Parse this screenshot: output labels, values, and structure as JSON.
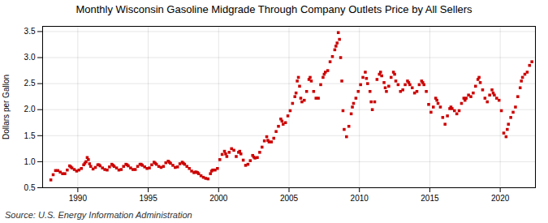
{
  "chart_data": {
    "type": "scatter",
    "title": "Monthly Wisconsin Gasoline Midgrade Through Company Outlets Price by All Sellers",
    "ylabel": "Dollars per Gallon",
    "annotations": [
      "Source: U.S. Energy Information Administration"
    ],
    "color": "#cc0000",
    "marker": "square",
    "grid": true,
    "xlim": [
      1987.5,
      2022.5
    ],
    "ylim": [
      0.5,
      3.6
    ],
    "xticks": [
      1990,
      1995,
      2000,
      2005,
      2010,
      2015,
      2020
    ],
    "yticks": [
      0.5,
      {
        "value": 1,
        "label": "1.0"
      },
      1.5,
      {
        "value": 2,
        "label": "2.0"
      },
      2.5,
      {
        "value": 3,
        "label": "3.0"
      },
      3.5
    ],
    "x": [
      1988.083,
      1988.25,
      1988.417,
      1988.583,
      1988.75,
      1988.917,
      1989.083,
      1989.25,
      1989.417,
      1989.5,
      1989.583,
      1989.75,
      1989.917,
      1990.083,
      1990.25,
      1990.417,
      1990.5,
      1990.583,
      1990.667,
      1990.75,
      1990.833,
      1990.917,
      1991.083,
      1991.25,
      1991.417,
      1991.5,
      1991.583,
      1991.75,
      1991.917,
      1992.083,
      1992.25,
      1992.417,
      1992.5,
      1992.583,
      1992.75,
      1992.917,
      1993.083,
      1993.25,
      1993.417,
      1993.5,
      1993.583,
      1993.75,
      1993.917,
      1994.083,
      1994.25,
      1994.417,
      1994.5,
      1994.583,
      1994.75,
      1994.917,
      1995.083,
      1995.25,
      1995.417,
      1995.5,
      1995.583,
      1995.75,
      1995.917,
      1996.083,
      1996.25,
      1996.417,
      1996.5,
      1996.583,
      1996.75,
      1996.917,
      1997.083,
      1997.25,
      1997.417,
      1997.5,
      1997.583,
      1997.75,
      1997.917,
      1998.083,
      1998.25,
      1998.333,
      1998.417,
      1998.5,
      1998.583,
      1998.75,
      1998.917,
      1999.083,
      1999.25,
      1999.417,
      1999.5,
      1999.583,
      1999.75,
      1999.917,
      2000.083,
      2000.25,
      2000.417,
      2000.5,
      2000.583,
      2000.75,
      2000.917,
      2001.083,
      2001.25,
      2001.417,
      2001.5,
      2001.583,
      2001.75,
      2001.917,
      2002.083,
      2002.25,
      2002.417,
      2002.5,
      2002.583,
      2002.75,
      2002.917,
      2003.083,
      2003.25,
      2003.417,
      2003.5,
      2003.583,
      2003.75,
      2003.917,
      2004.083,
      2004.25,
      2004.417,
      2004.5,
      2004.583,
      2004.75,
      2004.917,
      2005.083,
      2005.25,
      2005.417,
      2005.5,
      2005.583,
      2005.667,
      2005.75,
      2005.833,
      2005.917,
      2006.083,
      2006.25,
      2006.417,
      2006.5,
      2006.583,
      2006.75,
      2006.917,
      2007.083,
      2007.25,
      2007.417,
      2007.5,
      2007.583,
      2007.75,
      2007.917,
      2008.083,
      2008.25,
      2008.333,
      2008.417,
      2008.5,
      2008.583,
      2008.667,
      2008.75,
      2008.833,
      2008.917,
      2009.083,
      2009.25,
      2009.417,
      2009.5,
      2009.583,
      2009.75,
      2009.917,
      2010.083,
      2010.25,
      2010.417,
      2010.5,
      2010.583,
      2010.75,
      2010.833,
      2010.917,
      2011.083,
      2011.25,
      2011.417,
      2011.5,
      2011.583,
      2011.75,
      2011.833,
      2011.917,
      2012.083,
      2012.25,
      2012.417,
      2012.5,
      2012.583,
      2012.75,
      2012.917,
      2013.083,
      2013.25,
      2013.417,
      2013.5,
      2013.583,
      2013.75,
      2013.917,
      2014.083,
      2014.25,
      2014.417,
      2014.5,
      2014.583,
      2014.75,
      2014.917,
      2015.083,
      2015.25,
      2015.417,
      2015.5,
      2015.583,
      2015.75,
      2015.917,
      2016.083,
      2016.25,
      2016.417,
      2016.5,
      2016.583,
      2016.75,
      2016.917,
      2017.083,
      2017.25,
      2017.417,
      2017.5,
      2017.583,
      2017.75,
      2017.917,
      2018.083,
      2018.25,
      2018.417,
      2018.5,
      2018.583,
      2018.75,
      2018.917,
      2019.083,
      2019.25,
      2019.417,
      2019.5,
      2019.583,
      2019.75,
      2019.917,
      2020.083,
      2020.25,
      2020.417,
      2020.5,
      2020.583,
      2020.75,
      2020.917,
      2021.083,
      2021.25,
      2021.417,
      2021.5,
      2021.583,
      2021.75,
      2021.917,
      2022.083,
      2022.25
    ],
    "values": [
      0.65,
      0.75,
      0.83,
      0.83,
      0.8,
      0.77,
      0.77,
      0.84,
      0.92,
      0.9,
      0.88,
      0.85,
      0.82,
      0.84,
      0.87,
      0.94,
      0.97,
      1.0,
      1.08,
      1.04,
      0.96,
      0.91,
      0.86,
      0.89,
      0.94,
      0.94,
      0.92,
      0.88,
      0.85,
      0.84,
      0.9,
      0.95,
      0.93,
      0.91,
      0.88,
      0.84,
      0.85,
      0.91,
      0.95,
      0.94,
      0.92,
      0.88,
      0.85,
      0.85,
      0.91,
      0.95,
      0.95,
      0.93,
      0.9,
      0.87,
      0.88,
      0.94,
      0.99,
      0.97,
      0.95,
      0.91,
      0.89,
      0.91,
      0.98,
      1.01,
      0.99,
      0.97,
      0.93,
      0.89,
      0.9,
      0.96,
      0.99,
      0.97,
      0.95,
      0.91,
      0.87,
      0.82,
      0.79,
      0.8,
      0.8,
      0.79,
      0.77,
      0.73,
      0.7,
      0.68,
      0.67,
      0.77,
      0.82,
      0.84,
      0.84,
      0.87,
      1.04,
      1.14,
      1.2,
      1.15,
      1.1,
      1.18,
      1.25,
      1.22,
      1.1,
      1.18,
      1.2,
      1.15,
      1.03,
      0.93,
      0.95,
      1.02,
      1.12,
      1.09,
      1.07,
      1.08,
      1.18,
      1.28,
      1.4,
      1.48,
      1.41,
      1.38,
      1.38,
      1.45,
      1.58,
      1.68,
      1.82,
      1.78,
      1.72,
      1.75,
      1.88,
      1.98,
      2.12,
      2.25,
      2.32,
      2.55,
      2.62,
      2.45,
      2.22,
      2.15,
      2.18,
      2.35,
      2.58,
      2.62,
      2.55,
      2.35,
      2.22,
      2.22,
      2.48,
      2.62,
      2.68,
      2.72,
      2.75,
      2.92,
      3.02,
      3.15,
      3.22,
      3.28,
      3.48,
      3.35,
      3.0,
      2.55,
      1.98,
      1.62,
      1.48,
      1.68,
      1.92,
      2.05,
      2.12,
      2.22,
      2.35,
      2.48,
      2.62,
      2.72,
      2.6,
      2.5,
      2.35,
      2.15,
      2.0,
      2.15,
      2.58,
      2.68,
      2.72,
      2.65,
      2.52,
      2.42,
      2.35,
      2.45,
      2.62,
      2.72,
      2.68,
      2.55,
      2.48,
      2.35,
      2.38,
      2.48,
      2.55,
      2.52,
      2.48,
      2.42,
      2.32,
      2.35,
      2.48,
      2.55,
      2.52,
      2.48,
      2.35,
      2.1,
      1.95,
      2.05,
      2.22,
      2.18,
      2.12,
      2.05,
      1.85,
      1.72,
      1.88,
      2.02,
      2.05,
      2.02,
      1.98,
      1.92,
      1.98,
      2.12,
      2.22,
      2.18,
      2.22,
      2.28,
      2.25,
      2.32,
      2.45,
      2.58,
      2.62,
      2.52,
      2.38,
      2.22,
      2.15,
      2.28,
      2.38,
      2.32,
      2.28,
      2.22,
      2.18,
      1.98,
      1.55,
      1.48,
      1.62,
      1.72,
      1.85,
      1.95,
      2.05,
      2.25,
      2.42,
      2.55,
      2.62,
      2.68,
      2.72,
      2.85,
      2.92
    ]
  }
}
